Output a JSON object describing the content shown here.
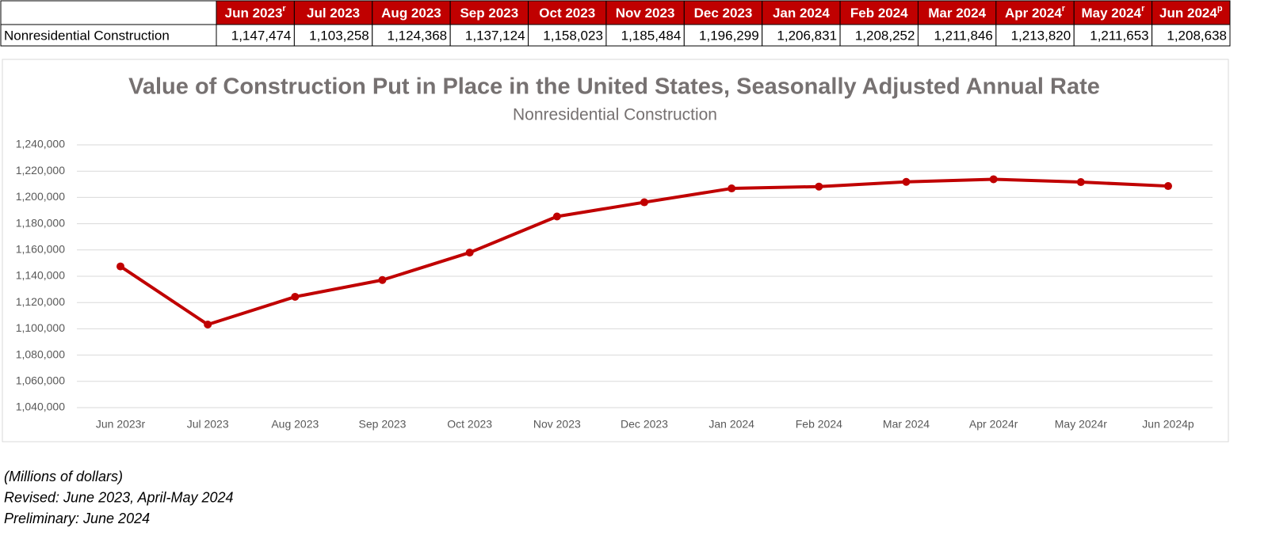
{
  "table": {
    "header": [
      {
        "text": "Jun 2023",
        "mark": "r"
      },
      {
        "text": "Jul 2023"
      },
      {
        "text": "Aug 2023"
      },
      {
        "text": "Sep 2023"
      },
      {
        "text": "Oct 2023"
      },
      {
        "text": "Nov 2023"
      },
      {
        "text": "Dec 2023"
      },
      {
        "text": "Jan 2024"
      },
      {
        "text": "Feb 2024"
      },
      {
        "text": "Mar 2024"
      },
      {
        "text": "Apr 2024",
        "mark": "r"
      },
      {
        "text": "May 2024",
        "mark": "r"
      },
      {
        "text": "Jun 2024",
        "mark": "p"
      }
    ],
    "rows": [
      [
        "Nonresidential Construction",
        "1,147,474",
        "1,103,258",
        "1,124,368",
        "1,137,124",
        "1,158,023",
        "1,185,484",
        "1,196,299",
        "1,206,831",
        "1,208,252",
        "1,211,846",
        "1,213,820",
        "1,211,653",
        "1,208,638"
      ]
    ]
  },
  "chart_data": {
    "type": "line",
    "title": "Value of Construction Put in Place in the United States, Seasonally Adjusted Annual Rate",
    "subtitle": "Nonresidential Construction",
    "categories": [
      "Jun 2023r",
      "Jul 2023",
      "Aug 2023",
      "Sep 2023",
      "Oct 2023",
      "Nov 2023",
      "Dec 2023",
      "Jan 2024",
      "Feb 2024",
      "Mar 2024",
      "Apr 2024r",
      "May 2024r",
      "Jun 2024p"
    ],
    "series": [
      {
        "name": "Nonresidential Construction",
        "color": "#c00000",
        "values": [
          1147474,
          1103258,
          1124368,
          1137124,
          1158023,
          1185484,
          1196299,
          1206831,
          1208252,
          1211846,
          1213820,
          1211653,
          1208638
        ]
      }
    ],
    "ylim": [
      1040000,
      1240000
    ],
    "yticks": [
      {
        "value": 1040000,
        "label": "1,040,000"
      },
      {
        "value": 1060000,
        "label": "1,060,000"
      },
      {
        "value": 1080000,
        "label": "1,080,000"
      },
      {
        "value": 1100000,
        "label": "1,100,000"
      },
      {
        "value": 1120000,
        "label": "1,120,000"
      },
      {
        "value": 1140000,
        "label": "1,140,000"
      },
      {
        "value": 1160000,
        "label": "1,160,000"
      },
      {
        "value": 1180000,
        "label": "1,180,000"
      },
      {
        "value": 1200000,
        "label": "1,200,000"
      },
      {
        "value": 1220000,
        "label": "1,220,000"
      },
      {
        "value": 1240000,
        "label": "1,240,000"
      }
    ],
    "grid": true
  },
  "notes": [
    "(Millions of dollars)",
    "Revised: June 2023, April-May 2024",
    "Preliminary: June 2024"
  ]
}
